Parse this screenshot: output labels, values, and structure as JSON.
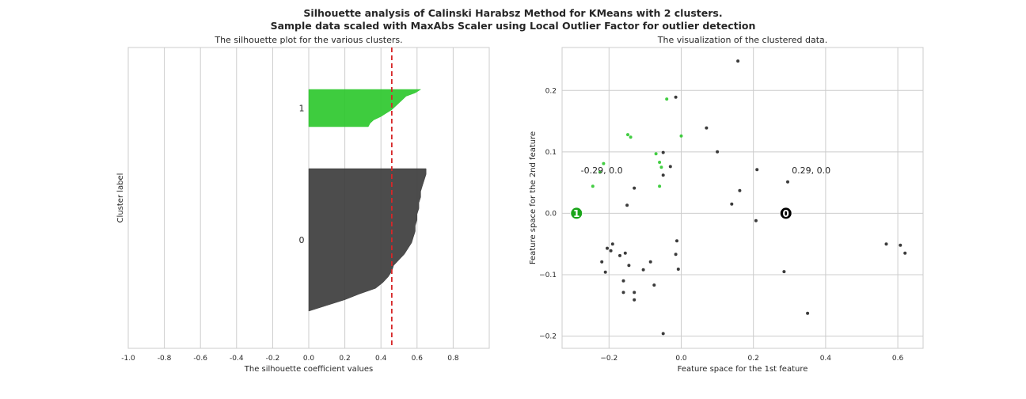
{
  "title_line1": "Silhouette analysis of Calinski Harabsz Method for KMeans with 2 clusters.",
  "title_line2": "Sample data scaled with MaxAbs Scaler using Local Outlier Factor for outlier detection",
  "chart_data": [
    {
      "type": "area",
      "title": "The silhouette plot for the various clusters.",
      "xlabel": "The silhouette coefficient values",
      "ylabel": "Cluster label",
      "xlim": [
        -1.0,
        1.0
      ],
      "xticks": [
        -1.0,
        -0.8,
        -0.6,
        -0.4,
        -0.2,
        0.0,
        0.2,
        0.4,
        0.6,
        0.8
      ],
      "grid": true,
      "average_silhouette": 0.46,
      "average_line_color": "#d62728",
      "clusters": [
        {
          "label": "0",
          "color": "#3d3d3d",
          "values": [
            0.65,
            0.65,
            0.64,
            0.63,
            0.62,
            0.62,
            0.61,
            0.61,
            0.6,
            0.6,
            0.59,
            0.59,
            0.58,
            0.57,
            0.55,
            0.53,
            0.5,
            0.47,
            0.46,
            0.44,
            0.41,
            0.37,
            0.28,
            0.2,
            0.1,
            0.0
          ]
        },
        {
          "label": "1",
          "color": "#2ec82e",
          "values": [
            0.62,
            0.59,
            0.54,
            0.52,
            0.5,
            0.48,
            0.46,
            0.43,
            0.4,
            0.36,
            0.34,
            0.33
          ]
        }
      ]
    },
    {
      "type": "scatter",
      "title": "The visualization of the clustered data.",
      "xlabel": "Feature space for the 1st feature",
      "ylabel": "Feature space for the 2nd feature",
      "xlim": [
        -0.33,
        0.67
      ],
      "ylim": [
        -0.22,
        0.27
      ],
      "xticks": [
        -0.2,
        0.0,
        0.2,
        0.4,
        0.6
      ],
      "yticks": [
        -0.2,
        -0.1,
        0.0,
        0.1,
        0.2
      ],
      "xtick_labels": [
        "−0.2",
        "0.0",
        "0.2",
        "0.4",
        "0.6"
      ],
      "ytick_labels": [
        "−0.2",
        "−0.1",
        "0.0",
        "0.1",
        "0.2"
      ],
      "grid": true,
      "series": [
        {
          "cluster": "0",
          "color": "#262626",
          "points": [
            [
              0.157,
              0.248
            ],
            [
              -0.015,
              0.189
            ],
            [
              0.07,
              0.139
            ],
            [
              0.1,
              0.1
            ],
            [
              -0.05,
              0.099
            ],
            [
              -0.03,
              0.076
            ],
            [
              0.21,
              0.071
            ],
            [
              -0.05,
              0.062
            ],
            [
              0.295,
              0.051
            ],
            [
              -0.13,
              0.041
            ],
            [
              0.162,
              0.037
            ],
            [
              -0.15,
              0.013
            ],
            [
              0.14,
              0.015
            ],
            [
              0.207,
              -0.012
            ],
            [
              -0.012,
              -0.045
            ],
            [
              -0.19,
              -0.05
            ],
            [
              -0.205,
              -0.057
            ],
            [
              -0.195,
              -0.061
            ],
            [
              -0.155,
              -0.065
            ],
            [
              -0.17,
              -0.069
            ],
            [
              -0.015,
              -0.067
            ],
            [
              -0.085,
              -0.079
            ],
            [
              -0.22,
              -0.079
            ],
            [
              -0.145,
              -0.085
            ],
            [
              -0.105,
              -0.092
            ],
            [
              -0.008,
              -0.091
            ],
            [
              -0.21,
              -0.096
            ],
            [
              0.285,
              -0.095
            ],
            [
              -0.16,
              -0.11
            ],
            [
              -0.075,
              -0.117
            ],
            [
              -0.16,
              -0.129
            ],
            [
              -0.13,
              -0.129
            ],
            [
              -0.13,
              -0.141
            ],
            [
              0.35,
              -0.163
            ],
            [
              -0.05,
              -0.196
            ],
            [
              0.568,
              -0.05
            ],
            [
              0.607,
              -0.052
            ],
            [
              0.62,
              -0.065
            ]
          ]
        },
        {
          "cluster": "1",
          "color": "#2ec82e",
          "points": [
            [
              -0.04,
              0.186
            ],
            [
              0.0,
              0.126
            ],
            [
              -0.148,
              0.128
            ],
            [
              -0.14,
              0.124
            ],
            [
              -0.07,
              0.097
            ],
            [
              -0.06,
              0.083
            ],
            [
              -0.215,
              0.081
            ],
            [
              -0.055,
              0.075
            ],
            [
              -0.225,
              0.067
            ],
            [
              -0.06,
              0.044
            ],
            [
              -0.245,
              0.044
            ]
          ]
        }
      ],
      "centers": [
        {
          "label": "1",
          "x": -0.29,
          "y": 0.0,
          "color": "#1aa51a"
        },
        {
          "label": "0",
          "x": 0.29,
          "y": 0.0,
          "color": "#000000"
        }
      ],
      "annotations": [
        {
          "text": "-0.29, 0.0",
          "x": -0.22,
          "y": 0.07
        },
        {
          "text": "0.29, 0.0",
          "x": 0.36,
          "y": 0.07
        }
      ]
    }
  ]
}
